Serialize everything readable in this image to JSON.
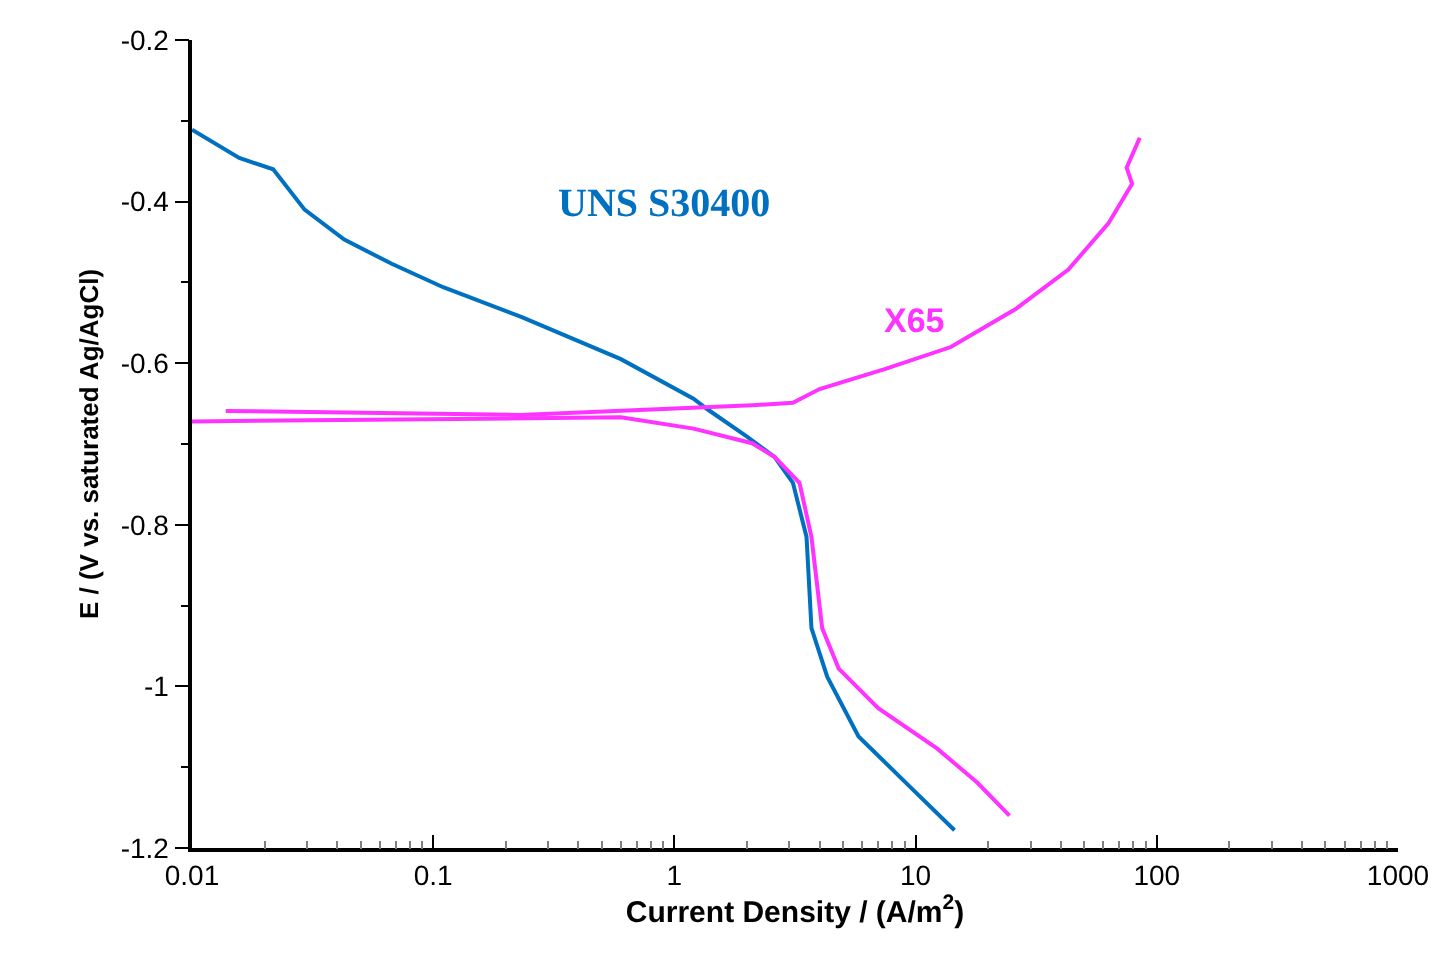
{
  "chart_data": {
    "type": "line",
    "xlabel": "Current Density / (A/m$^{2}$)",
    "ylabel": "E / (V vs. saturated Ag/AgCl)",
    "log": "x",
    "xlim": [
      0.01,
      1000
    ],
    "xticks": [
      0.01,
      0.1,
      1,
      10,
      100,
      1000
    ],
    "ylim": [
      -1.2,
      -0.2
    ],
    "yticks": [
      -1.2,
      -1,
      -0.8,
      -0.6,
      -0.4,
      -0.2
    ],
    "legend": false,
    "marker": "none",
    "line_style": "solid",
    "series": [
      {
        "name": "UNS S30400",
        "color": "#0070c0",
        "x": [
          0.01,
          0.0157,
          0.0217,
          0.0293,
          0.0428,
          0.0673,
          0.11,
          0.233,
          0.6,
          1.2,
          1.37,
          2.0,
          2.6,
          3.1,
          3.53,
          3.7,
          4.3,
          5.8,
          9.1,
          14.5
        ],
        "values": [
          -0.311,
          -0.346,
          -0.36,
          -0.41,
          -0.447,
          -0.477,
          -0.506,
          -0.543,
          -0.595,
          -0.644,
          -0.657,
          -0.691,
          -0.716,
          -0.748,
          -0.815,
          -0.928,
          -0.988,
          -1.062,
          -1.119,
          -1.178
        ]
      },
      {
        "name": "X65",
        "color": "#ff33ff",
        "x": [
          85,
          75,
          79,
          63,
          43,
          26,
          14,
          7.5,
          4,
          3.1,
          2.1,
          0.23,
          0.0138
        ],
        "values": [
          -0.321,
          -0.358,
          -0.378,
          -0.427,
          -0.484,
          -0.533,
          -0.58,
          -0.607,
          -0.632,
          -0.649,
          -0.652,
          -0.664,
          -0.659
        ]
      },
      {
        "color": "#ff33ff",
        "x": [
          0.01,
          0.125,
          0.6,
          1.2,
          2.1,
          2.6,
          3.3,
          3.7,
          4.1,
          4.8,
          7.0,
          12.3,
          18,
          24.5
        ],
        "values": [
          -0.672,
          -0.669,
          -0.667,
          -0.681,
          -0.699,
          -0.716,
          -0.748,
          -0.815,
          -0.928,
          -0.978,
          -1.027,
          -1.077,
          -1.119,
          -1.16
        ]
      }
    ]
  }
}
